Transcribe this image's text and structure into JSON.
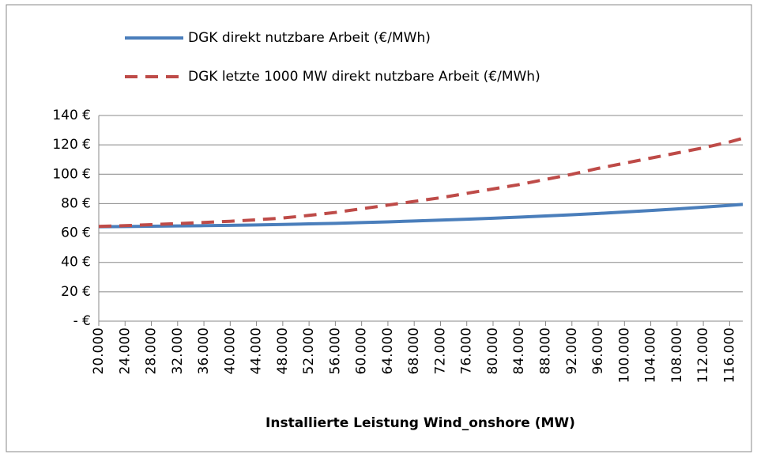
{
  "chart_data": {
    "type": "line",
    "x_label": "Installierte Leistung Wind_onshore (MW)",
    "x": [
      20000,
      24000,
      28000,
      32000,
      36000,
      40000,
      44000,
      48000,
      52000,
      56000,
      60000,
      64000,
      68000,
      72000,
      76000,
      80000,
      84000,
      88000,
      92000,
      96000,
      100000,
      104000,
      108000,
      112000,
      116000,
      118000
    ],
    "series": [
      {
        "name": "DGK direkt nutzbare Arbeit (€/MWh)",
        "color": "#4a7ebb",
        "dash": false,
        "values": [
          64.3,
          64.4,
          64.6,
          64.8,
          65,
          65.2,
          65.5,
          65.8,
          66.2,
          66.6,
          67.1,
          67.6,
          68.2,
          68.8,
          69.4,
          70.1,
          70.8,
          71.6,
          72.4,
          73.3,
          74.3,
          75.3,
          76.4,
          77.6,
          78.8,
          79.5
        ]
      },
      {
        "name": "DGK letzte 1000 MW direkt nutzbare Arbeit  (€/MWh)",
        "color": "#be4b48",
        "dash": true,
        "values": [
          64.5,
          65,
          65.7,
          66.4,
          67.2,
          68,
          69,
          70.2,
          72,
          74,
          76.5,
          79,
          81.5,
          84,
          87,
          90,
          93,
          96.5,
          100,
          104,
          107.5,
          111,
          114.5,
          118,
          122,
          124.5
        ]
      }
    ],
    "xlim": [
      20000,
      118000
    ],
    "xticks": [
      {
        "value": 20000,
        "label": "20.000"
      },
      {
        "value": 24000,
        "label": "24.000"
      },
      {
        "value": 28000,
        "label": "28.000"
      },
      {
        "value": 32000,
        "label": "32.000"
      },
      {
        "value": 36000,
        "label": "36.000"
      },
      {
        "value": 40000,
        "label": "40.000"
      },
      {
        "value": 44000,
        "label": "44.000"
      },
      {
        "value": 48000,
        "label": "48.000"
      },
      {
        "value": 52000,
        "label": "52.000"
      },
      {
        "value": 56000,
        "label": "56.000"
      },
      {
        "value": 60000,
        "label": "60.000"
      },
      {
        "value": 64000,
        "label": "64.000"
      },
      {
        "value": 68000,
        "label": "68.000"
      },
      {
        "value": 72000,
        "label": "72.000"
      },
      {
        "value": 76000,
        "label": "76.000"
      },
      {
        "value": 80000,
        "label": "80.000"
      },
      {
        "value": 84000,
        "label": "84.000"
      },
      {
        "value": 88000,
        "label": "88.000"
      },
      {
        "value": 92000,
        "label": "92.000"
      },
      {
        "value": 96000,
        "label": "96.000"
      },
      {
        "value": 100000,
        "label": "100.000"
      },
      {
        "value": 104000,
        "label": "104.000"
      },
      {
        "value": 108000,
        "label": "108.000"
      },
      {
        "value": 112000,
        "label": "112.000"
      },
      {
        "value": 116000,
        "label": "116.000"
      }
    ],
    "ylim": [
      0,
      140
    ],
    "yticks": [
      {
        "value": 0,
        "label": "- €"
      },
      {
        "value": 20,
        "label": "20 €"
      },
      {
        "value": 40,
        "label": "40 €"
      },
      {
        "value": 60,
        "label": "60 €"
      },
      {
        "value": 80,
        "label": "80 €"
      },
      {
        "value": 100,
        "label": "100 €"
      },
      {
        "value": 120,
        "label": "120 €"
      },
      {
        "value": 140,
        "label": "140 €"
      }
    ],
    "grid": true,
    "legend": "top"
  }
}
